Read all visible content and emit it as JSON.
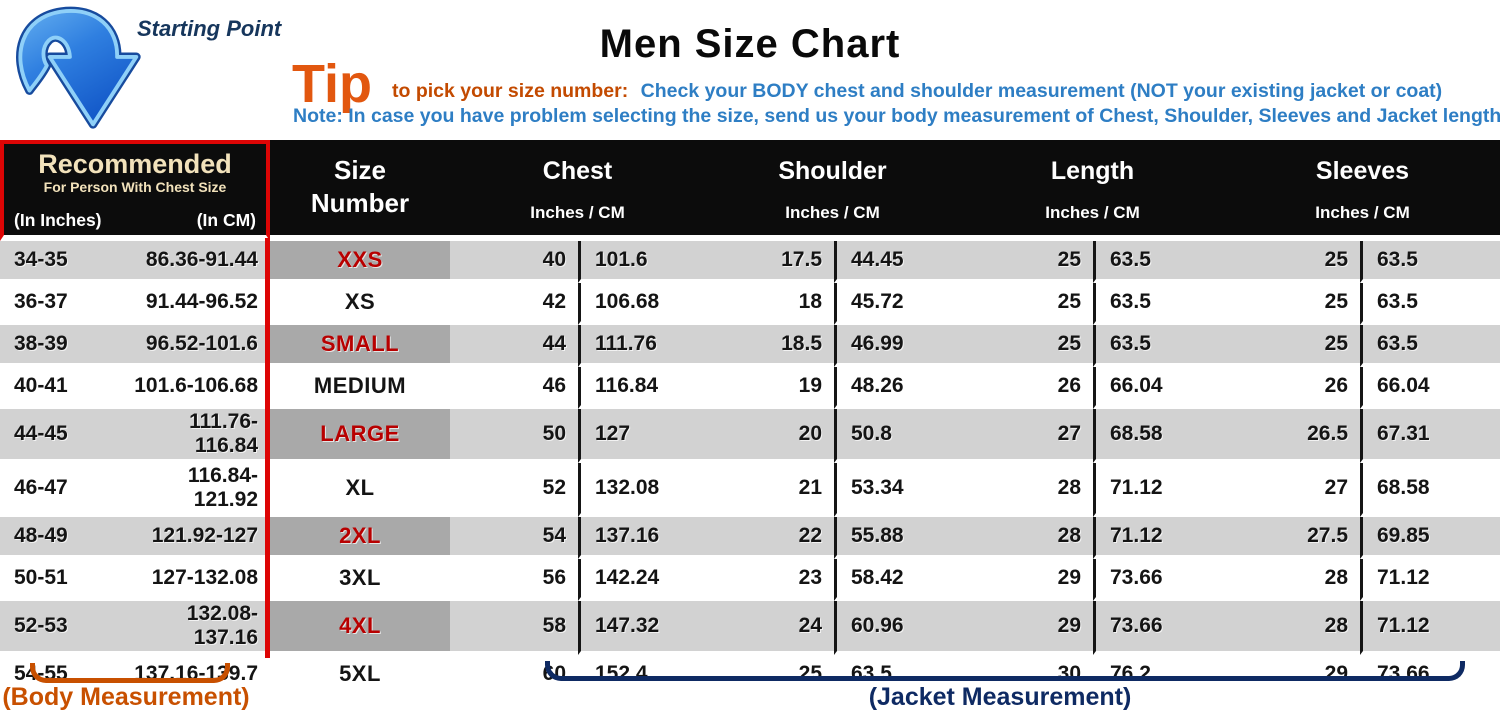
{
  "badge": {
    "starting_point": "Starting Point"
  },
  "title": "Men Size Chart",
  "tip": {
    "word": "Tip",
    "lead": "to pick your size number:",
    "text": "Check your BODY chest and shoulder measurement (NOT your existing jacket or coat)",
    "note": "Note: In case you have problem selecting the size, send us your body measurement of Chest, Shoulder, Sleeves and Jacket length"
  },
  "colors": {
    "header_bg": "#0c0c0c",
    "header_cream": "#f2e2bb",
    "red_accent": "#dd0505",
    "red_size_text": "#b80000",
    "row_gray": "#d2d2d2",
    "size_cell_gray": "#a9a9a9",
    "tip_orange": "#e2570f",
    "blue_text": "#2e7ec4",
    "navy": "#0e2a63",
    "body_orange": "#c85000"
  },
  "table": {
    "recommended": {
      "title": "Recommended",
      "subtitle": "For Person With Chest Size",
      "col_inches": "(In Inches)",
      "col_cm": "(In CM)"
    },
    "size_number_label": "Size Number",
    "groups": [
      {
        "label": "Chest",
        "units": "Inches  /  CM"
      },
      {
        "label": "Shoulder",
        "units": "Inches  /  CM"
      },
      {
        "label": "Length",
        "units": "Inches  /  CM"
      },
      {
        "label": "Sleeves",
        "units": "Inches  /  CM"
      }
    ],
    "rows": [
      {
        "rec_in": "34-35",
        "rec_cm": "86.36-91.44",
        "size": "XXS",
        "shaded": true,
        "red": true,
        "chest_in": "40",
        "chest_cm": "101.6",
        "shoulder_in": "17.5",
        "shoulder_cm": "44.45",
        "length_in": "25",
        "length_cm": "63.5",
        "sleeves_in": "25",
        "sleeves_cm": "63.5"
      },
      {
        "rec_in": "36-37",
        "rec_cm": "91.44-96.52",
        "size": "XS",
        "shaded": false,
        "red": false,
        "chest_in": "42",
        "chest_cm": "106.68",
        "shoulder_in": "18",
        "shoulder_cm": "45.72",
        "length_in": "25",
        "length_cm": "63.5",
        "sleeves_in": "25",
        "sleeves_cm": "63.5"
      },
      {
        "rec_in": "38-39",
        "rec_cm": "96.52-101.6",
        "size": "SMALL",
        "shaded": true,
        "red": true,
        "chest_in": "44",
        "chest_cm": "111.76",
        "shoulder_in": "18.5",
        "shoulder_cm": "46.99",
        "length_in": "25",
        "length_cm": "63.5",
        "sleeves_in": "25",
        "sleeves_cm": "63.5"
      },
      {
        "rec_in": "40-41",
        "rec_cm": "101.6-106.68",
        "size": "MEDIUM",
        "shaded": false,
        "red": false,
        "chest_in": "46",
        "chest_cm": "116.84",
        "shoulder_in": "19",
        "shoulder_cm": "48.26",
        "length_in": "26",
        "length_cm": "66.04",
        "sleeves_in": "26",
        "sleeves_cm": "66.04"
      },
      {
        "rec_in": "44-45",
        "rec_cm": "111.76-116.84",
        "size": "LARGE",
        "shaded": true,
        "red": true,
        "chest_in": "50",
        "chest_cm": "127",
        "shoulder_in": "20",
        "shoulder_cm": "50.8",
        "length_in": "27",
        "length_cm": "68.58",
        "sleeves_in": "26.5",
        "sleeves_cm": "67.31"
      },
      {
        "rec_in": "46-47",
        "rec_cm": "116.84-121.92",
        "size": "XL",
        "shaded": false,
        "red": false,
        "chest_in": "52",
        "chest_cm": "132.08",
        "shoulder_in": "21",
        "shoulder_cm": "53.34",
        "length_in": "28",
        "length_cm": "71.12",
        "sleeves_in": "27",
        "sleeves_cm": "68.58"
      },
      {
        "rec_in": "48-49",
        "rec_cm": "121.92-127",
        "size": "2XL",
        "shaded": true,
        "red": true,
        "chest_in": "54",
        "chest_cm": "137.16",
        "shoulder_in": "22",
        "shoulder_cm": "55.88",
        "length_in": "28",
        "length_cm": "71.12",
        "sleeves_in": "27.5",
        "sleeves_cm": "69.85"
      },
      {
        "rec_in": "50-51",
        "rec_cm": "127-132.08",
        "size": "3XL",
        "shaded": false,
        "red": false,
        "chest_in": "56",
        "chest_cm": "142.24",
        "shoulder_in": "23",
        "shoulder_cm": "58.42",
        "length_in": "29",
        "length_cm": "73.66",
        "sleeves_in": "28",
        "sleeves_cm": "71.12"
      },
      {
        "rec_in": "52-53",
        "rec_cm": "132.08-137.16",
        "size": "4XL",
        "shaded": true,
        "red": true,
        "chest_in": "58",
        "chest_cm": "147.32",
        "shoulder_in": "24",
        "shoulder_cm": "60.96",
        "length_in": "29",
        "length_cm": "73.66",
        "sleeves_in": "28",
        "sleeves_cm": "71.12"
      },
      {
        "rec_in": "54-55",
        "rec_cm": "137.16-139.7",
        "size": "5XL",
        "shaded": false,
        "red": false,
        "chest_in": "60",
        "chest_cm": "152.4",
        "shoulder_in": "25",
        "shoulder_cm": "63.5",
        "length_in": "30",
        "length_cm": "76.2",
        "sleeves_in": "29",
        "sleeves_cm": "73.66"
      }
    ]
  },
  "footer": {
    "body_label": "(Body Measurement)",
    "jacket_label": "(Jacket Measurement)"
  },
  "chart_data": {
    "type": "table",
    "title": "Men Size Chart",
    "columns": [
      "Recommended (In Inches)",
      "Recommended (In CM)",
      "Size Number",
      "Chest Inches",
      "Chest CM",
      "Shoulder Inches",
      "Shoulder CM",
      "Length Inches",
      "Length CM",
      "Sleeves Inches",
      "Sleeves CM"
    ],
    "rows": [
      [
        "34-35",
        "86.36-91.44",
        "XXS",
        40,
        101.6,
        17.5,
        44.45,
        25,
        63.5,
        25,
        63.5
      ],
      [
        "36-37",
        "91.44-96.52",
        "XS",
        42,
        106.68,
        18,
        45.72,
        25,
        63.5,
        25,
        63.5
      ],
      [
        "38-39",
        "96.52-101.6",
        "SMALL",
        44,
        111.76,
        18.5,
        46.99,
        25,
        63.5,
        25,
        63.5
      ],
      [
        "40-41",
        "101.6-106.68",
        "MEDIUM",
        46,
        116.84,
        19,
        48.26,
        26,
        66.04,
        26,
        66.04
      ],
      [
        "44-45",
        "111.76-116.84",
        "LARGE",
        50,
        127,
        20,
        50.8,
        27,
        68.58,
        26.5,
        67.31
      ],
      [
        "46-47",
        "116.84-121.92",
        "XL",
        52,
        132.08,
        21,
        53.34,
        28,
        71.12,
        27,
        68.58
      ],
      [
        "48-49",
        "121.92-127",
        "2XL",
        54,
        137.16,
        22,
        55.88,
        28,
        71.12,
        27.5,
        69.85
      ],
      [
        "50-51",
        "127-132.08",
        "3XL",
        56,
        142.24,
        23,
        58.42,
        29,
        73.66,
        28,
        71.12
      ],
      [
        "52-53",
        "132.08-137.16",
        "4XL",
        58,
        147.32,
        24,
        60.96,
        29,
        73.66,
        28,
        71.12
      ],
      [
        "54-55",
        "137.16-139.7",
        "5XL",
        60,
        152.4,
        25,
        63.5,
        30,
        76.2,
        29,
        73.66
      ]
    ]
  }
}
